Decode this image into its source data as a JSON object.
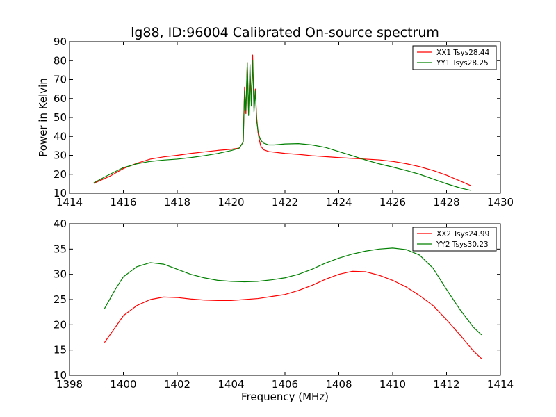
{
  "chart_data": [
    {
      "type": "line",
      "title": "lg88, ID:96004 Calibrated On-source spectrum",
      "xlabel": "",
      "ylabel": "Power in Kelvin",
      "xlim": [
        1414,
        1430
      ],
      "ylim": [
        10,
        90
      ],
      "xticks": [
        "1414",
        "1416",
        "1418",
        "1420",
        "1422",
        "1424",
        "1426",
        "1428",
        "1430"
      ],
      "yticks": [
        "10",
        "20",
        "30",
        "40",
        "50",
        "60",
        "70",
        "80",
        "90"
      ],
      "grid": false,
      "legend_position": "top-right",
      "series": [
        {
          "name": "XX1 Tsys28.44",
          "color": "#ff0000",
          "x": [
            1414.9,
            1415.5,
            1416.0,
            1416.5,
            1417.0,
            1417.5,
            1418.0,
            1418.5,
            1419.0,
            1419.5,
            1420.0,
            1420.3,
            1420.45,
            1420.5,
            1420.55,
            1420.6,
            1420.65,
            1420.7,
            1420.75,
            1420.8,
            1420.85,
            1420.9,
            1420.95,
            1421.0,
            1421.05,
            1421.1,
            1421.2,
            1421.4,
            1421.6,
            1422.0,
            1422.5,
            1423.0,
            1423.5,
            1424.0,
            1424.5,
            1425.0,
            1425.5,
            1426.0,
            1426.5,
            1427.0,
            1427.5,
            1428.0,
            1428.5,
            1428.9
          ],
          "y": [
            15.2,
            19.0,
            23.0,
            25.8,
            28.0,
            29.2,
            30.0,
            31.0,
            31.8,
            32.6,
            33.2,
            33.8,
            37.0,
            66.0,
            52.0,
            79.0,
            53.0,
            74.0,
            58.0,
            83.0,
            55.0,
            65.0,
            50.0,
            42.0,
            38.0,
            35.0,
            33.0,
            32.0,
            31.7,
            31.0,
            30.5,
            29.8,
            29.3,
            28.8,
            28.4,
            28.0,
            27.6,
            26.8,
            25.6,
            24.0,
            22.0,
            19.5,
            16.5,
            14.0
          ]
        },
        {
          "name": "YY1 Tsys28.25",
          "color": "#008000",
          "x": [
            1414.9,
            1415.5,
            1416.0,
            1416.5,
            1417.0,
            1417.5,
            1418.0,
            1418.5,
            1419.0,
            1419.5,
            1420.0,
            1420.3,
            1420.45,
            1420.5,
            1420.55,
            1420.6,
            1420.65,
            1420.7,
            1420.75,
            1420.8,
            1420.85,
            1420.9,
            1420.95,
            1421.0,
            1421.05,
            1421.1,
            1421.2,
            1421.4,
            1421.6,
            1422.0,
            1422.5,
            1423.0,
            1423.5,
            1424.0,
            1424.5,
            1425.0,
            1425.5,
            1426.0,
            1426.5,
            1427.0,
            1427.5,
            1428.0,
            1428.5,
            1428.9
          ],
          "y": [
            15.5,
            20.0,
            23.5,
            25.5,
            26.8,
            27.5,
            28.0,
            28.8,
            29.8,
            31.0,
            32.5,
            33.8,
            37.0,
            64.0,
            54.0,
            79.0,
            51.0,
            78.0,
            56.0,
            80.0,
            53.0,
            64.0,
            48.0,
            43.0,
            40.0,
            38.0,
            36.5,
            35.5,
            35.5,
            36.0,
            36.2,
            35.5,
            34.2,
            32.0,
            29.8,
            27.5,
            25.5,
            23.8,
            22.0,
            20.0,
            17.5,
            15.0,
            12.8,
            11.5
          ]
        }
      ]
    },
    {
      "type": "line",
      "title": "",
      "xlabel": "Frequency (MHz)",
      "ylabel": "",
      "xlim": [
        1398,
        1414
      ],
      "ylim": [
        10,
        40
      ],
      "xticks": [
        "1398",
        "1400",
        "1402",
        "1404",
        "1406",
        "1408",
        "1410",
        "1412",
        "1414"
      ],
      "yticks": [
        "10",
        "15",
        "20",
        "25",
        "30",
        "35",
        "40"
      ],
      "grid": false,
      "legend_position": "top-right",
      "series": [
        {
          "name": "XX2 Tsys24.99",
          "color": "#ff0000",
          "x": [
            1399.3,
            1399.7,
            1400.0,
            1400.5,
            1401.0,
            1401.5,
            1402.0,
            1402.5,
            1403.0,
            1403.5,
            1404.0,
            1404.5,
            1405.0,
            1405.5,
            1406.0,
            1406.5,
            1407.0,
            1407.5,
            1408.0,
            1408.5,
            1409.0,
            1409.5,
            1410.0,
            1410.5,
            1411.0,
            1411.5,
            1412.0,
            1412.5,
            1413.0,
            1413.3
          ],
          "y": [
            16.5,
            19.5,
            21.8,
            23.8,
            25.0,
            25.5,
            25.4,
            25.1,
            24.9,
            24.8,
            24.8,
            25.0,
            25.2,
            25.6,
            26.0,
            26.8,
            27.8,
            29.0,
            30.0,
            30.6,
            30.5,
            29.8,
            28.8,
            27.5,
            25.8,
            23.8,
            21.0,
            18.0,
            14.8,
            13.3
          ]
        },
        {
          "name": "YY2 Tsys30.23",
          "color": "#008000",
          "x": [
            1399.3,
            1399.7,
            1400.0,
            1400.5,
            1401.0,
            1401.5,
            1402.0,
            1402.5,
            1403.0,
            1403.5,
            1404.0,
            1404.5,
            1405.0,
            1405.5,
            1406.0,
            1406.5,
            1407.0,
            1407.5,
            1408.0,
            1408.5,
            1409.0,
            1409.5,
            1410.0,
            1410.5,
            1411.0,
            1411.5,
            1412.0,
            1412.5,
            1413.0,
            1413.3
          ],
          "y": [
            23.2,
            27.0,
            29.5,
            31.5,
            32.3,
            32.0,
            31.0,
            30.0,
            29.3,
            28.8,
            28.6,
            28.5,
            28.6,
            28.9,
            29.3,
            30.0,
            31.0,
            32.2,
            33.2,
            34.0,
            34.6,
            35.0,
            35.2,
            34.9,
            33.8,
            31.2,
            27.0,
            23.0,
            19.5,
            18.0
          ]
        }
      ]
    }
  ]
}
